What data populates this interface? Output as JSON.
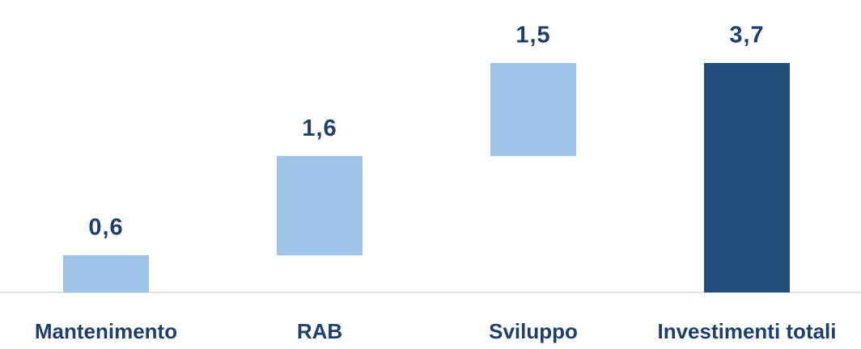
{
  "chart_data": {
    "type": "waterfall",
    "categories": [
      "Mantenimento",
      "RAB",
      "Sviluppo",
      "Investimenti totali"
    ],
    "values": [
      0.6,
      1.6,
      1.5,
      3.7
    ],
    "value_labels": [
      "0,6",
      "1,6",
      "1,5",
      "3,7"
    ],
    "is_total": [
      false,
      false,
      false,
      true
    ],
    "colors": [
      "#9dc3e6",
      "#9dc3e6",
      "#9dc3e6",
      "#1f4e79"
    ]
  }
}
